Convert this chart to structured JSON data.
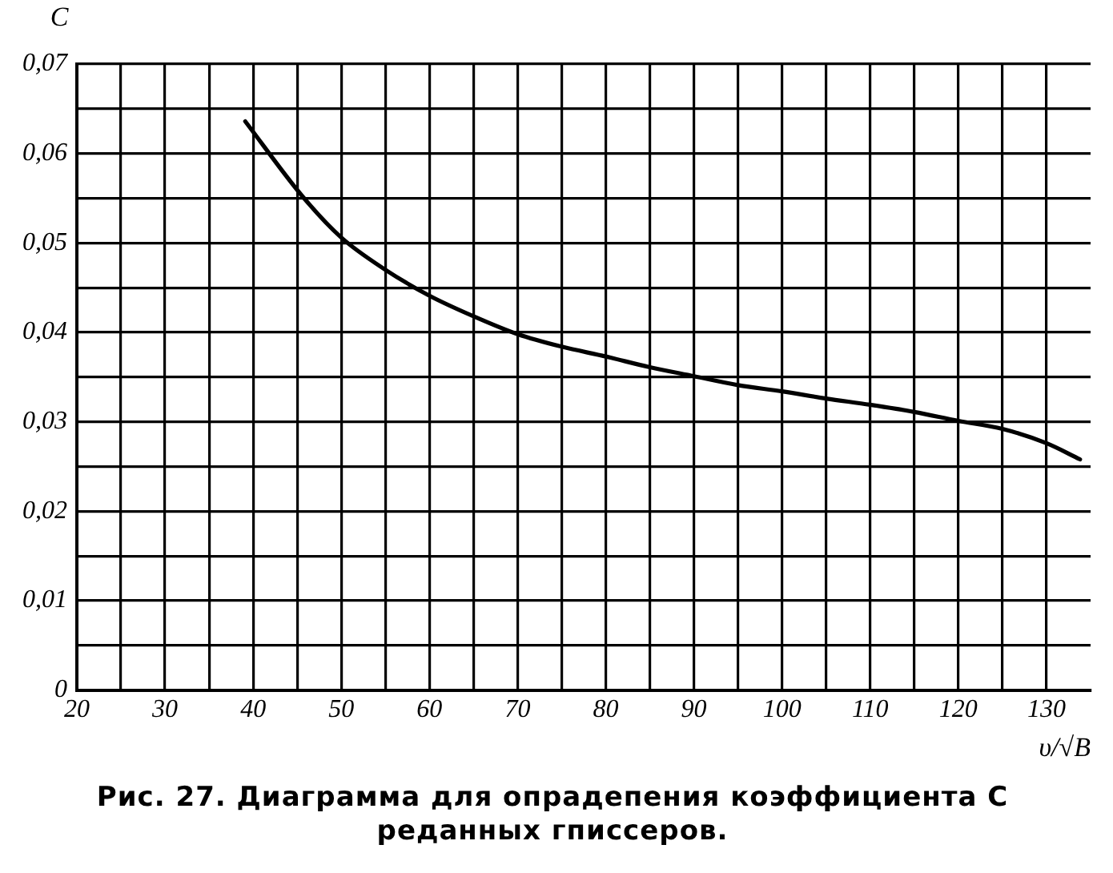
{
  "chart_data": {
    "type": "line",
    "xlabel": "υ/√B",
    "ylabel": "C",
    "annotations": [
      "Рис. 27. Диаграмма для опрадепения коэффициента C реданных гписсеров."
    ],
    "x": [
      39.1,
      45.6,
      50,
      55,
      60,
      65,
      70,
      75,
      80,
      85,
      90,
      95,
      100,
      105,
      110,
      115,
      120,
      125,
      130,
      133.8
    ],
    "series": [
      {
        "color": "#000000",
        "values": [
          0.0636,
          0.0552,
          0.0506,
          0.047,
          0.0441,
          0.0418,
          0.0398,
          0.0384,
          0.0373,
          0.0361,
          0.0351,
          0.0341,
          0.0334,
          0.0326,
          0.0319,
          0.0311,
          0.0301,
          0.0292,
          0.0276,
          0.0258
        ]
      }
    ],
    "xlim": [
      20,
      135
    ],
    "xticks": [
      20,
      {
        "value": 25,
        "label": null
      },
      30,
      {
        "value": 35,
        "label": null
      },
      40,
      {
        "value": 45,
        "label": null
      },
      50,
      {
        "value": 55,
        "label": null
      },
      60,
      {
        "value": 65,
        "label": null
      },
      70,
      {
        "value": 75,
        "label": null
      },
      80,
      {
        "value": 85,
        "label": null
      },
      90,
      {
        "value": 95,
        "label": null
      },
      100,
      {
        "value": 105,
        "label": null
      },
      110,
      {
        "value": 115,
        "label": null
      },
      120,
      {
        "value": 125,
        "label": null
      },
      130
    ],
    "ylim": [
      0,
      0.07
    ],
    "yticks": [
      {
        "value": 0,
        "label": "0"
      },
      {
        "value": 0.005,
        "label": null
      },
      {
        "value": 0.01,
        "label": "0,01"
      },
      {
        "value": 0.015,
        "label": null
      },
      {
        "value": 0.02,
        "label": "0,02"
      },
      {
        "value": 0.025,
        "label": null
      },
      {
        "value": 0.03,
        "label": "0,03"
      },
      {
        "value": 0.035,
        "label": null
      },
      {
        "value": 0.04,
        "label": "0,04"
      },
      {
        "value": 0.045,
        "label": null
      },
      {
        "value": 0.05,
        "label": "0,05"
      },
      {
        "value": 0.055,
        "label": null
      },
      {
        "value": 0.06,
        "label": "0,06"
      },
      {
        "value": 0.065,
        "label": null
      },
      {
        "value": 0.07,
        "label": "0,07"
      }
    ],
    "grid": true,
    "legend": false,
    "marker": "none",
    "line_style": "solid"
  }
}
